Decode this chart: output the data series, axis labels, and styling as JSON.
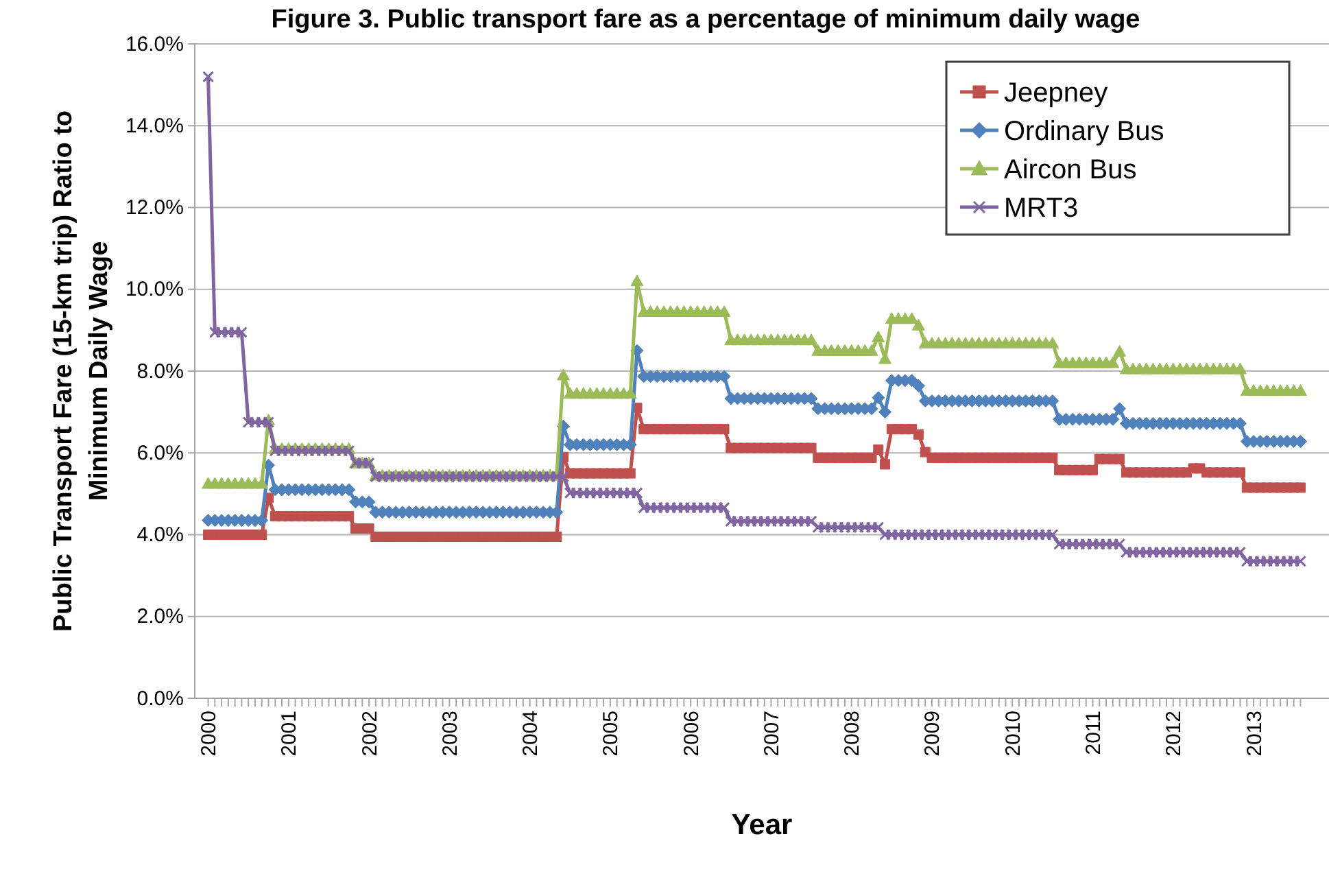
{
  "chart_data": {
    "type": "line",
    "title": "Figure 3. Public transport fare as a percentage of minimum daily wage",
    "xlabel": "Year",
    "ylabel": "Public Transport Fare (15-km trip) Ratio to Minimum Daily Wage",
    "categories": [
      "2000",
      null,
      null,
      null,
      null,
      null,
      null,
      null,
      null,
      null,
      null,
      null,
      "2001",
      null,
      null,
      null,
      null,
      null,
      null,
      null,
      null,
      null,
      null,
      null,
      "2002",
      null,
      null,
      null,
      null,
      null,
      null,
      null,
      null,
      null,
      null,
      null,
      "2003",
      null,
      null,
      null,
      null,
      null,
      null,
      null,
      null,
      null,
      null,
      null,
      "2004",
      null,
      null,
      null,
      null,
      null,
      null,
      null,
      null,
      null,
      null,
      null,
      "2005",
      null,
      null,
      null,
      null,
      null,
      null,
      null,
      null,
      null,
      null,
      null,
      "2006",
      null,
      null,
      null,
      null,
      null,
      null,
      null,
      null,
      null,
      null,
      null,
      "2007",
      null,
      null,
      null,
      null,
      null,
      null,
      null,
      null,
      null,
      null,
      null,
      "2008",
      null,
      null,
      null,
      null,
      null,
      null,
      null,
      null,
      null,
      null,
      null,
      "2009",
      null,
      null,
      null,
      null,
      null,
      null,
      null,
      null,
      null,
      null,
      null,
      "2010",
      null,
      null,
      null,
      null,
      null,
      null,
      null,
      null,
      null,
      null,
      null,
      "2011",
      null,
      null,
      null,
      null,
      null,
      null,
      null,
      null,
      null,
      null,
      null,
      "2012",
      null,
      null,
      null,
      null,
      null,
      null,
      null,
      null,
      null,
      null,
      null,
      "2013",
      null,
      null,
      null,
      null,
      null,
      null,
      null
    ],
    "ylim": [
      0,
      16
    ],
    "yticks": [
      {
        "value": 0,
        "label": "0.0%"
      },
      {
        "value": 2,
        "label": "2.0%"
      },
      {
        "value": 4,
        "label": "4.0%"
      },
      {
        "value": 6,
        "label": "6.0%"
      },
      {
        "value": 8,
        "label": "8.0%"
      },
      {
        "value": 10,
        "label": "10.0%"
      },
      {
        "value": 12,
        "label": "12.0%"
      },
      {
        "value": 14,
        "label": "14.0%"
      },
      {
        "value": 16,
        "label": "16.0%"
      }
    ],
    "grid": "y",
    "legend": "top right",
    "series": [
      {
        "name": "Jeepney",
        "color": "#c0504d",
        "marker": "square",
        "values": [
          4.0,
          4.0,
          4.0,
          4.0,
          4.0,
          4.0,
          4.0,
          4.0,
          4.0,
          4.9,
          4.45,
          4.45,
          4.45,
          4.45,
          4.45,
          4.45,
          4.45,
          4.45,
          4.45,
          4.45,
          4.45,
          4.45,
          4.15,
          4.15,
          4.15,
          3.95,
          3.95,
          3.95,
          3.95,
          3.95,
          3.95,
          3.95,
          3.95,
          3.95,
          3.95,
          3.95,
          3.95,
          3.95,
          3.95,
          3.95,
          3.95,
          3.95,
          3.95,
          3.95,
          3.95,
          3.95,
          3.95,
          3.95,
          3.95,
          3.95,
          3.95,
          3.95,
          3.95,
          5.9,
          5.5,
          5.5,
          5.5,
          5.5,
          5.5,
          5.5,
          5.5,
          5.5,
          5.5,
          5.5,
          7.1,
          6.58,
          6.58,
          6.58,
          6.58,
          6.58,
          6.58,
          6.58,
          6.58,
          6.58,
          6.58,
          6.58,
          6.58,
          6.58,
          6.12,
          6.12,
          6.12,
          6.12,
          6.12,
          6.12,
          6.12,
          6.12,
          6.12,
          6.12,
          6.12,
          6.12,
          6.12,
          5.88,
          5.88,
          5.88,
          5.88,
          5.88,
          5.88,
          5.88,
          5.88,
          5.88,
          6.08,
          5.72,
          6.58,
          6.58,
          6.58,
          6.58,
          6.45,
          6.02,
          5.88,
          5.88,
          5.88,
          5.88,
          5.88,
          5.88,
          5.88,
          5.88,
          5.88,
          5.88,
          5.88,
          5.88,
          5.88,
          5.88,
          5.88,
          5.88,
          5.88,
          5.88,
          5.88,
          5.58,
          5.58,
          5.58,
          5.58,
          5.58,
          5.58,
          5.85,
          5.85,
          5.85,
          5.85,
          5.52,
          5.52,
          5.52,
          5.52,
          5.52,
          5.52,
          5.52,
          5.52,
          5.52,
          5.52,
          5.62,
          5.62,
          5.52,
          5.52,
          5.52,
          5.52,
          5.52,
          5.52,
          5.15,
          5.15,
          5.15,
          5.15,
          5.15,
          5.15,
          5.15,
          5.15,
          5.15
        ]
      },
      {
        "name": "Ordinary Bus",
        "color": "#4f81bd",
        "marker": "diamond",
        "values": [
          4.35,
          4.35,
          4.35,
          4.35,
          4.35,
          4.35,
          4.35,
          4.35,
          4.35,
          5.7,
          5.1,
          5.1,
          5.1,
          5.1,
          5.1,
          5.1,
          5.1,
          5.1,
          5.1,
          5.1,
          5.1,
          5.1,
          4.8,
          4.8,
          4.8,
          4.55,
          4.55,
          4.55,
          4.55,
          4.55,
          4.55,
          4.55,
          4.55,
          4.55,
          4.55,
          4.55,
          4.55,
          4.55,
          4.55,
          4.55,
          4.55,
          4.55,
          4.55,
          4.55,
          4.55,
          4.55,
          4.55,
          4.55,
          4.55,
          4.55,
          4.55,
          4.55,
          4.55,
          6.65,
          6.2,
          6.2,
          6.2,
          6.2,
          6.2,
          6.2,
          6.2,
          6.2,
          6.2,
          6.2,
          8.5,
          7.87,
          7.87,
          7.87,
          7.87,
          7.87,
          7.87,
          7.87,
          7.87,
          7.87,
          7.87,
          7.87,
          7.87,
          7.87,
          7.33,
          7.33,
          7.33,
          7.33,
          7.33,
          7.33,
          7.33,
          7.33,
          7.33,
          7.33,
          7.33,
          7.33,
          7.33,
          7.08,
          7.08,
          7.08,
          7.08,
          7.08,
          7.08,
          7.08,
          7.08,
          7.08,
          7.35,
          7.0,
          7.77,
          7.77,
          7.77,
          7.77,
          7.64,
          7.27,
          7.27,
          7.27,
          7.27,
          7.27,
          7.27,
          7.27,
          7.27,
          7.27,
          7.27,
          7.27,
          7.27,
          7.27,
          7.27,
          7.27,
          7.27,
          7.27,
          7.27,
          7.27,
          7.27,
          6.82,
          6.82,
          6.82,
          6.82,
          6.82,
          6.82,
          6.82,
          6.82,
          6.82,
          7.08,
          6.72,
          6.72,
          6.72,
          6.72,
          6.72,
          6.72,
          6.72,
          6.72,
          6.72,
          6.72,
          6.72,
          6.72,
          6.72,
          6.72,
          6.72,
          6.72,
          6.72,
          6.72,
          6.28,
          6.28,
          6.28,
          6.28,
          6.28,
          6.28,
          6.28,
          6.28,
          6.28
        ]
      },
      {
        "name": "Aircon Bus",
        "color": "#9bbb59",
        "marker": "triangle",
        "values": [
          5.25,
          5.25,
          5.25,
          5.25,
          5.25,
          5.25,
          5.25,
          5.25,
          5.25,
          6.8,
          6.1,
          6.1,
          6.1,
          6.1,
          6.1,
          6.1,
          6.1,
          6.1,
          6.1,
          6.1,
          6.1,
          6.1,
          5.75,
          5.75,
          5.75,
          5.45,
          5.45,
          5.45,
          5.45,
          5.45,
          5.45,
          5.45,
          5.45,
          5.45,
          5.45,
          5.45,
          5.45,
          5.45,
          5.45,
          5.45,
          5.45,
          5.45,
          5.45,
          5.45,
          5.45,
          5.45,
          5.45,
          5.45,
          5.45,
          5.45,
          5.45,
          5.45,
          5.45,
          7.9,
          7.45,
          7.45,
          7.45,
          7.45,
          7.45,
          7.45,
          7.45,
          7.45,
          7.45,
          7.45,
          10.2,
          9.45,
          9.45,
          9.45,
          9.45,
          9.45,
          9.45,
          9.45,
          9.45,
          9.45,
          9.45,
          9.45,
          9.45,
          9.45,
          8.76,
          8.76,
          8.76,
          8.76,
          8.76,
          8.76,
          8.76,
          8.76,
          8.76,
          8.76,
          8.76,
          8.76,
          8.76,
          8.5,
          8.5,
          8.5,
          8.5,
          8.5,
          8.5,
          8.5,
          8.5,
          8.5,
          8.83,
          8.3,
          9.28,
          9.28,
          9.28,
          9.28,
          9.12,
          8.68,
          8.68,
          8.68,
          8.68,
          8.68,
          8.68,
          8.68,
          8.68,
          8.68,
          8.68,
          8.68,
          8.68,
          8.68,
          8.68,
          8.68,
          8.68,
          8.68,
          8.68,
          8.68,
          8.68,
          8.2,
          8.2,
          8.2,
          8.2,
          8.2,
          8.2,
          8.2,
          8.2,
          8.2,
          8.48,
          8.05,
          8.05,
          8.05,
          8.05,
          8.05,
          8.05,
          8.05,
          8.05,
          8.05,
          8.05,
          8.05,
          8.05,
          8.05,
          8.05,
          8.05,
          8.05,
          8.05,
          8.05,
          7.52,
          7.52,
          7.52,
          7.52,
          7.52,
          7.52,
          7.52,
          7.52,
          7.52
        ]
      },
      {
        "name": "MRT3",
        "color": "#8064a2",
        "marker": "cross",
        "values": [
          15.2,
          8.95,
          8.95,
          8.95,
          8.95,
          8.95,
          6.75,
          6.75,
          6.75,
          6.75,
          6.05,
          6.05,
          6.05,
          6.05,
          6.05,
          6.05,
          6.05,
          6.05,
          6.05,
          6.05,
          6.05,
          6.05,
          5.75,
          5.75,
          5.75,
          5.42,
          5.42,
          5.42,
          5.42,
          5.42,
          5.42,
          5.42,
          5.42,
          5.42,
          5.42,
          5.42,
          5.42,
          5.42,
          5.42,
          5.42,
          5.42,
          5.42,
          5.42,
          5.42,
          5.42,
          5.42,
          5.42,
          5.42,
          5.42,
          5.42,
          5.42,
          5.42,
          5.42,
          5.42,
          5.02,
          5.02,
          5.02,
          5.02,
          5.02,
          5.02,
          5.02,
          5.02,
          5.02,
          5.02,
          5.02,
          4.66,
          4.66,
          4.66,
          4.66,
          4.66,
          4.66,
          4.66,
          4.66,
          4.66,
          4.66,
          4.66,
          4.66,
          4.66,
          4.33,
          4.33,
          4.33,
          4.33,
          4.33,
          4.33,
          4.33,
          4.33,
          4.33,
          4.33,
          4.33,
          4.33,
          4.33,
          4.18,
          4.18,
          4.18,
          4.18,
          4.18,
          4.18,
          4.18,
          4.18,
          4.18,
          4.18,
          4.0,
          4.0,
          4.0,
          4.0,
          4.0,
          4.0,
          4.0,
          4.0,
          4.0,
          4.0,
          4.0,
          4.0,
          4.0,
          4.0,
          4.0,
          4.0,
          4.0,
          4.0,
          4.0,
          4.0,
          4.0,
          4.0,
          4.0,
          4.0,
          4.0,
          4.0,
          3.77,
          3.77,
          3.77,
          3.77,
          3.77,
          3.77,
          3.77,
          3.77,
          3.77,
          3.77,
          3.57,
          3.57,
          3.57,
          3.57,
          3.57,
          3.57,
          3.57,
          3.57,
          3.57,
          3.57,
          3.57,
          3.57,
          3.57,
          3.57,
          3.57,
          3.57,
          3.57,
          3.57,
          3.35,
          3.35,
          3.35,
          3.35,
          3.35,
          3.35,
          3.35,
          3.35,
          3.35
        ]
      }
    ]
  }
}
